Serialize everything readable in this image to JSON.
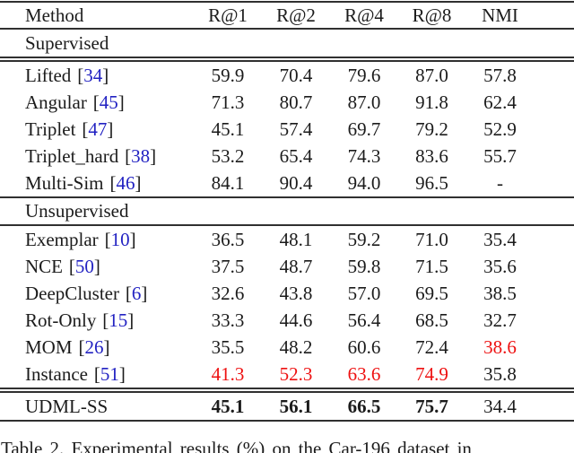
{
  "columns": [
    "Method",
    "R@1",
    "R@2",
    "R@4",
    "R@8",
    "NMI"
  ],
  "section_headers": {
    "supervised": "Supervised",
    "unsupervised": "Unsupervised"
  },
  "brackets": {
    "open": "[",
    "close": "]"
  },
  "supervised_rows": [
    {
      "method": "Lifted",
      "cite": "34",
      "values": [
        "59.9",
        "70.4",
        "79.6",
        "87.0",
        "57.8"
      ]
    },
    {
      "method": "Angular",
      "cite": "45",
      "values": [
        "71.3",
        "80.7",
        "87.0",
        "91.8",
        "62.4"
      ]
    },
    {
      "method": "Triplet",
      "cite": "47",
      "values": [
        "45.1",
        "57.4",
        "69.7",
        "79.2",
        "52.9"
      ]
    },
    {
      "method": "Triplet_hard",
      "cite": "38",
      "values": [
        "53.2",
        "65.4",
        "74.3",
        "83.6",
        "55.7"
      ]
    },
    {
      "method": "Multi-Sim",
      "cite": "46",
      "values": [
        "84.1",
        "90.4",
        "94.0",
        "96.5",
        "-"
      ]
    }
  ],
  "unsupervised_rows": [
    {
      "method": "Exemplar",
      "cite": "10",
      "values": [
        "36.5",
        "48.1",
        "59.2",
        "71.0",
        "35.4"
      ]
    },
    {
      "method": "NCE",
      "cite": "50",
      "values": [
        "37.5",
        "48.7",
        "59.8",
        "71.5",
        "35.6"
      ]
    },
    {
      "method": "DeepCluster",
      "cite": "6",
      "values": [
        "32.6",
        "43.8",
        "57.0",
        "69.5",
        "38.5"
      ]
    },
    {
      "method": "Rot-Only",
      "cite": "15",
      "values": [
        "33.3",
        "44.6",
        "56.4",
        "68.5",
        "32.7"
      ]
    },
    {
      "method": "MOM",
      "cite": "26",
      "values": [
        "35.5",
        "48.2",
        "60.6",
        "72.4",
        "38.6"
      ]
    },
    {
      "method": "Instance",
      "cite": "51",
      "values": [
        "41.3",
        "52.3",
        "63.6",
        "74.9",
        "35.8"
      ]
    }
  ],
  "result_row": {
    "method": "UDML-SS",
    "values": [
      "45.1",
      "56.1",
      "66.5",
      "75.7",
      "34.4"
    ]
  },
  "caption": "Table 2. Experimental results (%) on the Car-196 dataset in",
  "colors": {
    "citation_blue": "#2222c2",
    "highlight_red": "#ee1111",
    "ink_black": "#1b1b1b"
  }
}
